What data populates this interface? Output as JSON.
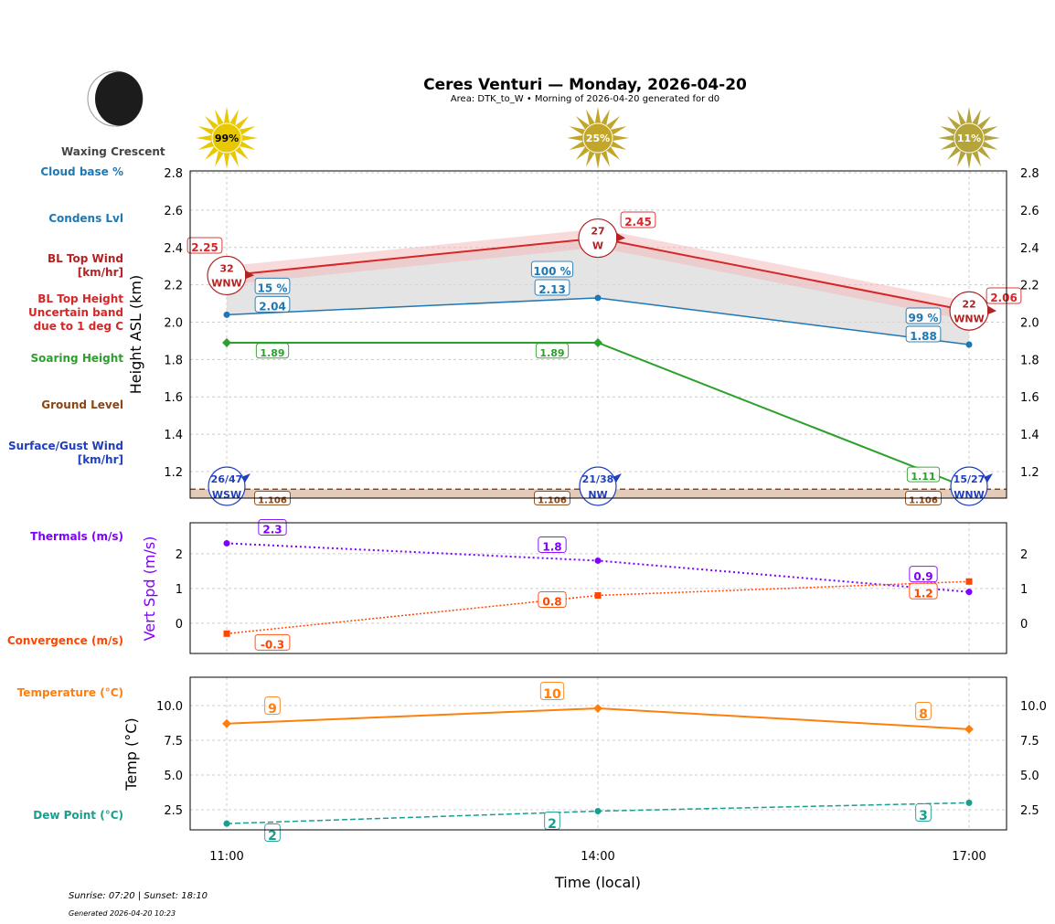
{
  "header": {
    "title": "Ceres Venturi — Monday, 2026-04-20",
    "subtitle": "Area: DTK_to_W • Morning of 2026-04-20 generated for d0",
    "moon_phase": "Waxing Crescent"
  },
  "footer": {
    "sun": "Sunrise: 07:20 | Sunset: 18:10",
    "generated": "Generated 2026-04-20 10:23"
  },
  "left_labels": [
    {
      "text": "Cloud base %",
      "color": "#1f77b4"
    },
    {
      "text": "Condens Lvl",
      "color": "#1f77b4"
    },
    {
      "text": "BL Top Wind\n[km/hr]",
      "color": "#b22222"
    },
    {
      "text": "BL Top Height\nUncertain band\ndue to 1 deg C",
      "color": "#d62728"
    },
    {
      "text": "Soaring Height",
      "color": "#2ca02c"
    },
    {
      "text": "Ground Level",
      "color": "#8b4513"
    },
    {
      "text": "Surface/Gust Wind\n[km/hr]",
      "color": "#1f3fbf"
    },
    {
      "text": "Thermals (m/s)",
      "color": "#7f00ff"
    },
    {
      "text": "Convergence (m/s)",
      "color": "#ff4500"
    },
    {
      "text": "Temperature (°C)",
      "color": "#ff7f0e"
    },
    {
      "text": "Dew Point (°C)",
      "color": "#17a08f"
    }
  ],
  "chart_data": [
    {
      "type": "line",
      "xlabel": "Time (local)",
      "ylabel": "Height ASL (km)",
      "x": [
        "11:00",
        "14:00",
        "17:00"
      ],
      "ylim": [
        1.058,
        2.81
      ],
      "yticks": [
        "1.2",
        "1.4",
        "1.6",
        "1.8",
        "2.0",
        "2.2",
        "2.4",
        "2.6",
        "2.8"
      ],
      "grid": true,
      "sun_percent": [
        "99%",
        "25%",
        "11%"
      ],
      "series": [
        {
          "key": "bl_top",
          "values": [
            2.25,
            2.45,
            2.06
          ],
          "color": "#d62728",
          "band": 0.05
        },
        {
          "key": "condens",
          "values": [
            2.04,
            2.13,
            1.88
          ],
          "color": "#1f77b4",
          "cloud_pct": [
            "15 %",
            "100 %",
            "99 %"
          ]
        },
        {
          "key": "soaring",
          "values": [
            1.89,
            1.89,
            1.11
          ],
          "color": "#2ca02c"
        },
        {
          "key": "ground",
          "values": [
            1.106,
            1.106,
            1.106
          ],
          "color": "#8b4513"
        }
      ],
      "bl_wind": [
        {
          "speed": "32",
          "dir": "WNW"
        },
        {
          "speed": "27",
          "dir": "W"
        },
        {
          "speed": "22",
          "dir": "WNW"
        }
      ],
      "surface_wind": [
        {
          "speed": "26/47",
          "dir": "WSW"
        },
        {
          "speed": "21/38",
          "dir": "NW"
        },
        {
          "speed": "15/27",
          "dir": "WNW"
        }
      ]
    },
    {
      "type": "line",
      "ylabel": "Vert Spd (m/s)",
      "ylim": [
        -0.87,
        2.89
      ],
      "yticks": [
        "0",
        "1",
        "2"
      ],
      "grid": true,
      "series": [
        {
          "key": "thermals",
          "values": [
            2.3,
            1.8,
            0.9
          ],
          "color": "#7f00ff"
        },
        {
          "key": "convergence",
          "values": [
            -0.3,
            0.8,
            1.2
          ],
          "color": "#ff4500"
        }
      ]
    },
    {
      "type": "line",
      "ylabel": "Temp (°C)",
      "ylim": [
        1.05,
        12.04
      ],
      "yticks": [
        "2.5",
        "5.0",
        "7.5",
        "10.0"
      ],
      "grid": true,
      "series": [
        {
          "key": "temperature",
          "values": [
            8.7,
            9.8,
            8.3
          ],
          "labels": [
            "9",
            "10",
            "8"
          ],
          "color": "#ff7f0e"
        },
        {
          "key": "dewpoint",
          "values": [
            1.5,
            2.4,
            3.0
          ],
          "labels": [
            "2",
            "2",
            "3"
          ],
          "color": "#17a08f"
        }
      ]
    }
  ]
}
